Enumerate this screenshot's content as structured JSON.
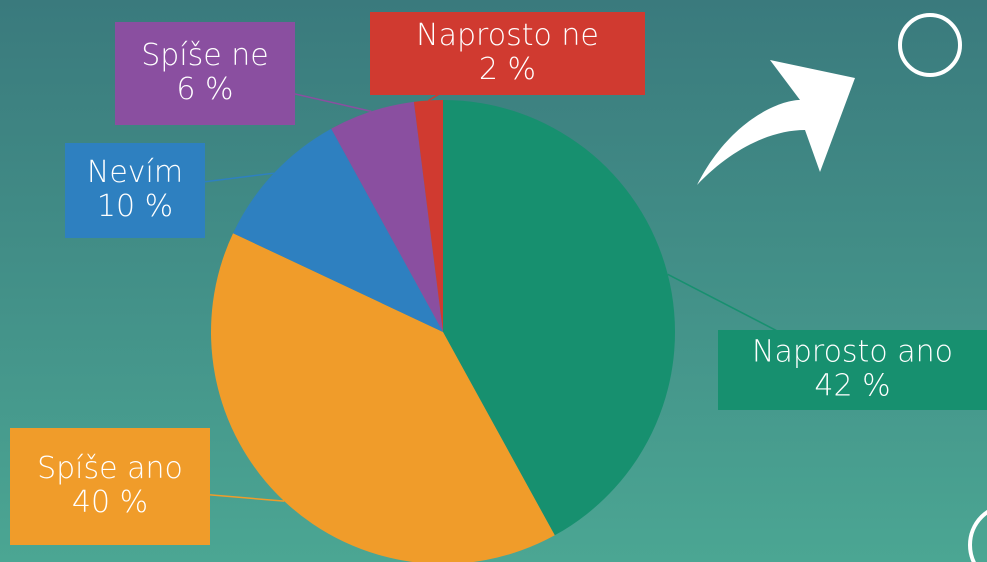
{
  "chart_data": {
    "type": "pie",
    "categories": [
      "Naprosto ano",
      "Spíše ano",
      "Nevím",
      "Spíše ne",
      "Naprosto ne"
    ],
    "values": [
      42,
      40,
      10,
      6,
      2
    ],
    "value_labels": [
      "42 %",
      "40 %",
      "10 %",
      "6 %",
      "2 %"
    ],
    "colors": [
      "#17906f",
      "#f09c2a",
      "#2e80c0",
      "#8a4fa0",
      "#d03a30"
    ]
  }
}
